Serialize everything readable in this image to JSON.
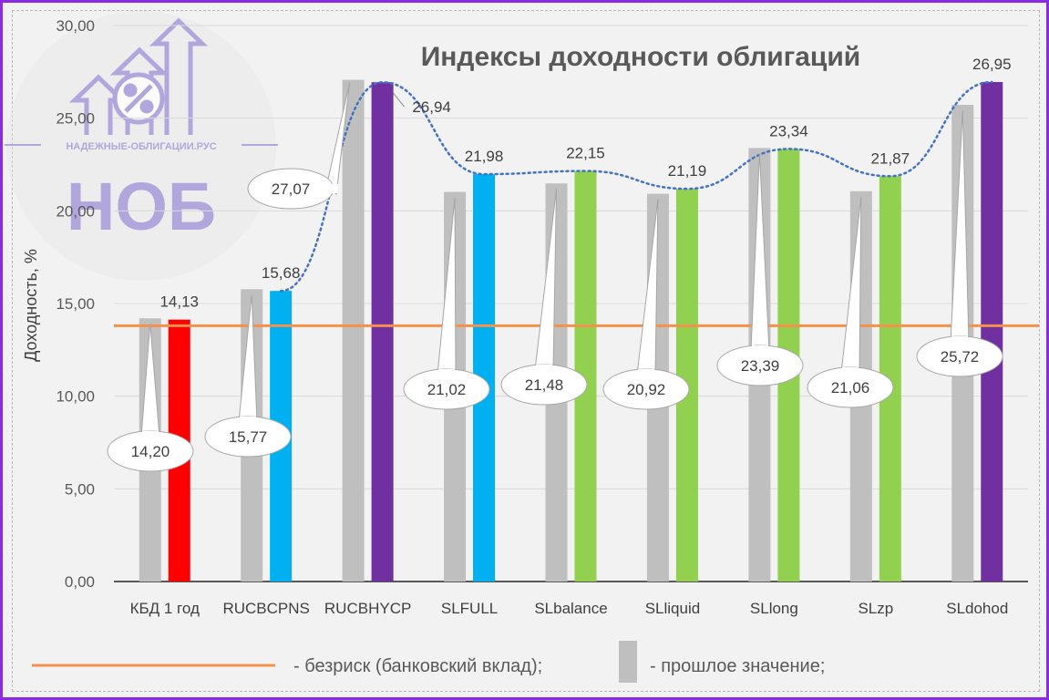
{
  "chart_data": {
    "type": "bar",
    "title": "Индексы доходности облигаций",
    "ylabel": "Доходность, %",
    "ylim": [
      0,
      30
    ],
    "yticks": [
      "0,00",
      "5,00",
      "10,00",
      "15,00",
      "20,00",
      "25,00",
      "30,00"
    ],
    "categories": [
      "КБД 1 год",
      "RUCBCPNS",
      "RUCBHYCP",
      "SLFULL",
      "SLbalance",
      "SLliquid",
      "SLlong",
      "SLzp",
      "SLdohod"
    ],
    "series": [
      {
        "name": "прошлое значение",
        "color": "#bfbfbf",
        "values": [
          14.2,
          15.77,
          27.07,
          21.02,
          21.48,
          20.92,
          23.39,
          21.06,
          25.72
        ],
        "labels": [
          "14,20",
          "15,77",
          "27,07",
          "21,02",
          "21,48",
          "20,92",
          "23,39",
          "21,06",
          "25,72"
        ]
      },
      {
        "name": "",
        "values": [
          14.13,
          15.68,
          26.94,
          21.98,
          22.15,
          21.19,
          23.34,
          21.87,
          26.95
        ],
        "labels": [
          "14,13",
          "15,68",
          "26,94",
          "21,98",
          "22,15",
          "21,19",
          "23,34",
          "21,87",
          "26,95"
        ],
        "colors": [
          "#ff0000",
          "#00b0f0",
          "#7030a0",
          "#00b0f0",
          "#92d050",
          "#92d050",
          "#92d050",
          "#92d050",
          "#7030a0"
        ]
      }
    ],
    "risk_free": {
      "name": "безриск (банковский вклад)",
      "value": 13.8,
      "color": "#f4914b"
    },
    "trend_color": "#4472c4",
    "grid": true,
    "legend_position": "bottom"
  },
  "legend": {
    "risk_free_text": "- безриск (банковский вклад);",
    "previous_text": "- прошлое значение;"
  },
  "watermark": {
    "site": "НАДЕЖНЫЕ-ОБЛИГАЦИИ.РУС",
    "abbr": "НОБ",
    "color": "#9d8fd6"
  }
}
